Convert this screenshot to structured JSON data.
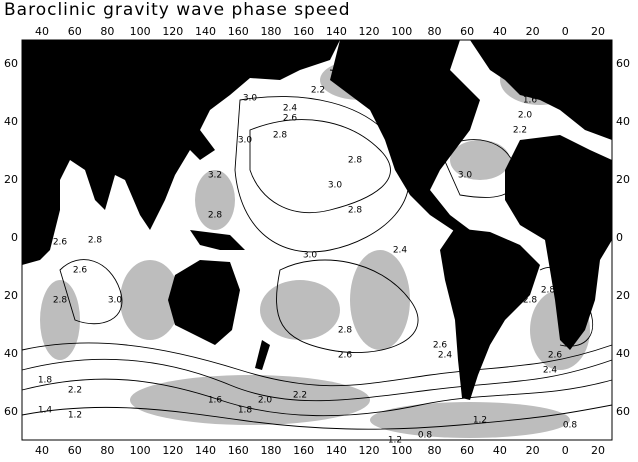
{
  "title": "Baroclinic gravity wave phase speed",
  "top_axis": [
    "40",
    "60",
    "80",
    "100",
    "120",
    "140",
    "160",
    "180",
    "160",
    "140",
    "120",
    "100",
    "80",
    "60",
    "40",
    "20",
    "0",
    "20"
  ],
  "bottom_axis": [
    "40",
    "60",
    "80",
    "100",
    "120",
    "140",
    "160",
    "180",
    "160",
    "140",
    "120",
    "100",
    "80",
    "60",
    "40",
    "20",
    "0",
    "20"
  ],
  "left_axis": [
    "60",
    "40",
    "20",
    "0",
    "20",
    "40",
    "60"
  ],
  "right_axis": [
    "60",
    "40",
    "20",
    "0",
    "20",
    "40",
    "60"
  ],
  "contour_labels": [
    "2.2",
    "3.0",
    "2.4",
    "2.6",
    "2.8",
    "3.0",
    "3.2",
    "2.8",
    "3.0",
    "2.8",
    "2.8",
    "3.0",
    "2.4",
    "2.6",
    "2.8",
    "3.0",
    "2.6",
    "2.8",
    "2.2",
    "1.8",
    "1.4",
    "1.2",
    "2.8",
    "2.6",
    "2.2",
    "2.0",
    "1.8",
    "1.6",
    "0.8",
    "1.2",
    "2.4",
    "2.6",
    "2.8",
    "3.0",
    "2.2",
    "2.0",
    "1.6",
    "2.8",
    "2.6",
    "2.4",
    "1.2",
    "0.8"
  ]
}
